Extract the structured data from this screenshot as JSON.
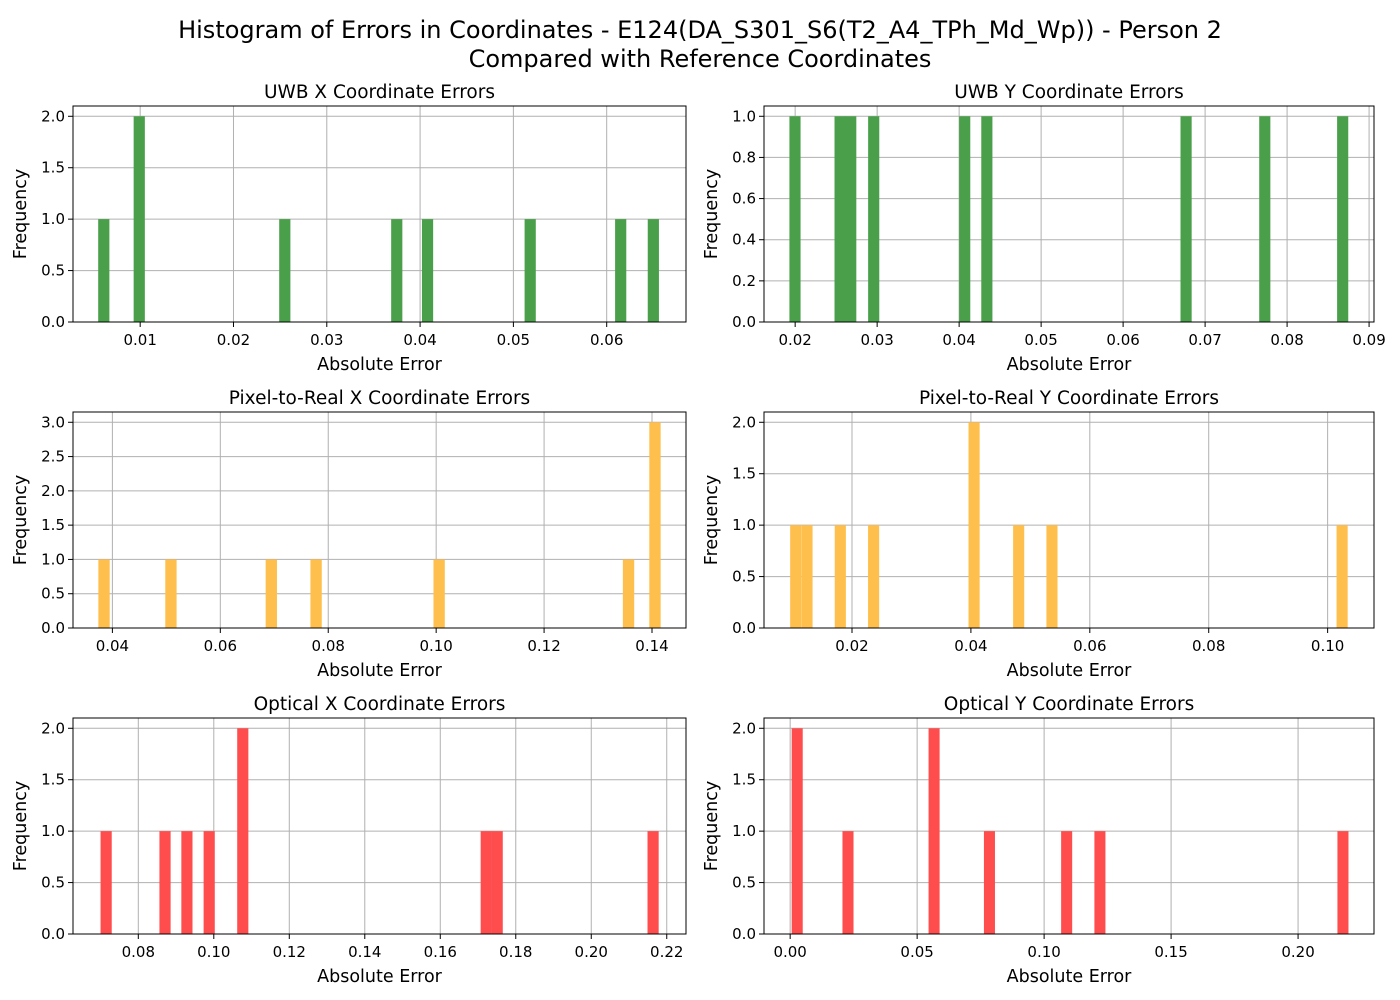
{
  "figure": {
    "title_line1": "Histogram of Errors in Coordinates - E124(DA_S301_S6(T2_A4_TPh_Md_Wp)) - Person 2",
    "title_line2": "Compared with Reference Coordinates"
  },
  "colors": {
    "uwb": "#4aa04a",
    "pixel": "#ffbf4d",
    "optical": "#ff4d4d",
    "grid": "#b0b0b0"
  },
  "chart_data": [
    {
      "type": "bar",
      "title": "UWB X Coordinate Errors",
      "xlabel": "Absolute Error",
      "ylabel": "Frequency",
      "color": "#4aa04a",
      "grid": true,
      "xlim": [
        0.0028,
        0.0685
      ],
      "ylim": [
        0,
        2.1
      ],
      "xticks": [
        0.01,
        0.02,
        0.03,
        0.04,
        0.05,
        0.06
      ],
      "xtick_labels": [
        "0.01",
        "0.02",
        "0.03",
        "0.04",
        "0.05",
        "0.06"
      ],
      "yticks": [
        0,
        0.5,
        1,
        1.5,
        2
      ],
      "ytick_labels": [
        "0.0",
        "0.5",
        "1.0",
        "1.5",
        "2.0"
      ],
      "bin_width": 0.0012,
      "bins": [
        {
          "x": 0.0055,
          "count": 1
        },
        {
          "x": 0.0093,
          "count": 2
        },
        {
          "x": 0.0249,
          "count": 1
        },
        {
          "x": 0.0369,
          "count": 1
        },
        {
          "x": 0.0402,
          "count": 1
        },
        {
          "x": 0.0512,
          "count": 1
        },
        {
          "x": 0.0609,
          "count": 1
        },
        {
          "x": 0.0644,
          "count": 1
        }
      ]
    },
    {
      "type": "bar",
      "title": "UWB Y Coordinate Errors",
      "xlabel": "Absolute Error",
      "ylabel": "Frequency",
      "color": "#4aa04a",
      "grid": true,
      "xlim": [
        0.0162,
        0.0906
      ],
      "ylim": [
        0,
        1.05
      ],
      "xticks": [
        0.02,
        0.03,
        0.04,
        0.05,
        0.06,
        0.07,
        0.08,
        0.09
      ],
      "xtick_labels": [
        "0.02",
        "0.03",
        "0.04",
        "0.05",
        "0.06",
        "0.07",
        "0.08",
        "0.09"
      ],
      "yticks": [
        0,
        0.2,
        0.4,
        0.6,
        0.8,
        1.0
      ],
      "ytick_labels": [
        "0.0",
        "0.2",
        "0.4",
        "0.6",
        "0.8",
        "1.0"
      ],
      "bin_width": 0.00136,
      "bins": [
        {
          "x": 0.0193,
          "count": 1
        },
        {
          "x": 0.0248,
          "count": 1
        },
        {
          "x": 0.0261,
          "count": 1
        },
        {
          "x": 0.0289,
          "count": 1
        },
        {
          "x": 0.04,
          "count": 1
        },
        {
          "x": 0.0427,
          "count": 1
        },
        {
          "x": 0.067,
          "count": 1
        },
        {
          "x": 0.0766,
          "count": 1
        },
        {
          "x": 0.0861,
          "count": 1
        }
      ]
    },
    {
      "type": "bar",
      "title": "Pixel-to-Real X Coordinate Errors",
      "xlabel": "Absolute Error",
      "ylabel": "Frequency",
      "color": "#ffbf4d",
      "grid": true,
      "xlim": [
        0.0327,
        0.1463
      ],
      "ylim": [
        0,
        3.15
      ],
      "xticks": [
        0.04,
        0.06,
        0.08,
        0.1,
        0.12,
        0.14
      ],
      "xtick_labels": [
        "0.04",
        "0.06",
        "0.08",
        "0.10",
        "0.12",
        "0.14"
      ],
      "yticks": [
        0,
        0.5,
        1,
        1.5,
        2,
        2.5,
        3
      ],
      "ytick_labels": [
        "0.0",
        "0.5",
        "1.0",
        "1.5",
        "2.0",
        "2.5",
        "3.0"
      ],
      "bin_width": 0.0021,
      "bins": [
        {
          "x": 0.0374,
          "count": 1
        },
        {
          "x": 0.0498,
          "count": 1
        },
        {
          "x": 0.0684,
          "count": 1
        },
        {
          "x": 0.0767,
          "count": 1
        },
        {
          "x": 0.0995,
          "count": 1
        },
        {
          "x": 0.1346,
          "count": 1
        },
        {
          "x": 0.1395,
          "count": 3
        }
      ]
    },
    {
      "type": "bar",
      "title": "Pixel-to-Real Y Coordinate Errors",
      "xlabel": "Absolute Error",
      "ylabel": "Frequency",
      "color": "#ffbf4d",
      "grid": true,
      "xlim": [
        0.0052,
        0.1078
      ],
      "ylim": [
        0,
        2.1
      ],
      "xticks": [
        0.02,
        0.04,
        0.06,
        0.08,
        0.1
      ],
      "xtick_labels": [
        "0.02",
        "0.04",
        "0.06",
        "0.08",
        "0.10"
      ],
      "yticks": [
        0,
        0.5,
        1,
        1.5,
        2
      ],
      "ytick_labels": [
        "0.0",
        "0.5",
        "1.0",
        "1.5",
        "2.0"
      ],
      "bin_width": 0.00187,
      "bins": [
        {
          "x": 0.0096,
          "count": 1
        },
        {
          "x": 0.0115,
          "count": 1
        },
        {
          "x": 0.0171,
          "count": 1
        },
        {
          "x": 0.0227,
          "count": 1
        },
        {
          "x": 0.0396,
          "count": 2
        },
        {
          "x": 0.0471,
          "count": 1
        },
        {
          "x": 0.0527,
          "count": 1
        },
        {
          "x": 0.1015,
          "count": 1
        }
      ]
    },
    {
      "type": "bar",
      "title": "Optical X Coordinate Errors",
      "xlabel": "Absolute Error",
      "ylabel": "Frequency",
      "color": "#ff4d4d",
      "grid": true,
      "xlim": [
        0.0627,
        0.2251
      ],
      "ylim": [
        0,
        2.1
      ],
      "xticks": [
        0.08,
        0.1,
        0.12,
        0.14,
        0.16,
        0.18,
        0.2,
        0.22
      ],
      "xtick_labels": [
        "0.08",
        "0.10",
        "0.12",
        "0.14",
        "0.16",
        "0.18",
        "0.20",
        "0.22"
      ],
      "yticks": [
        0,
        0.5,
        1,
        1.5,
        2
      ],
      "ytick_labels": [
        "0.0",
        "0.5",
        "1.0",
        "1.5",
        "2.0"
      ],
      "bin_width": 0.00296,
      "bins": [
        {
          "x": 0.07,
          "count": 1
        },
        {
          "x": 0.0856,
          "count": 1
        },
        {
          "x": 0.0914,
          "count": 1
        },
        {
          "x": 0.0973,
          "count": 1
        },
        {
          "x": 0.1062,
          "count": 2
        },
        {
          "x": 0.1707,
          "count": 1
        },
        {
          "x": 0.1736,
          "count": 1
        },
        {
          "x": 0.2149,
          "count": 1
        }
      ]
    },
    {
      "type": "bar",
      "title": "Optical Y Coordinate Errors",
      "xlabel": "Absolute Error",
      "ylabel": "Frequency",
      "color": "#ff4d4d",
      "grid": true,
      "xlim": [
        -0.0103,
        0.2299
      ],
      "ylim": [
        0,
        2.1
      ],
      "xticks": [
        0.0,
        0.05,
        0.1,
        0.15,
        0.2
      ],
      "xtick_labels": [
        "0.00",
        "0.05",
        "0.10",
        "0.15",
        "0.20"
      ],
      "yticks": [
        0,
        0.5,
        1,
        1.5,
        2
      ],
      "ytick_labels": [
        "0.0",
        "0.5",
        "1.0",
        "1.5",
        "2.0"
      ],
      "bin_width": 0.00435,
      "bins": [
        {
          "x": 0.0006,
          "count": 2
        },
        {
          "x": 0.0206,
          "count": 1
        },
        {
          "x": 0.0545,
          "count": 2
        },
        {
          "x": 0.0763,
          "count": 1
        },
        {
          "x": 0.1067,
          "count": 1
        },
        {
          "x": 0.1198,
          "count": 1
        },
        {
          "x": 0.2155,
          "count": 1
        }
      ]
    }
  ]
}
